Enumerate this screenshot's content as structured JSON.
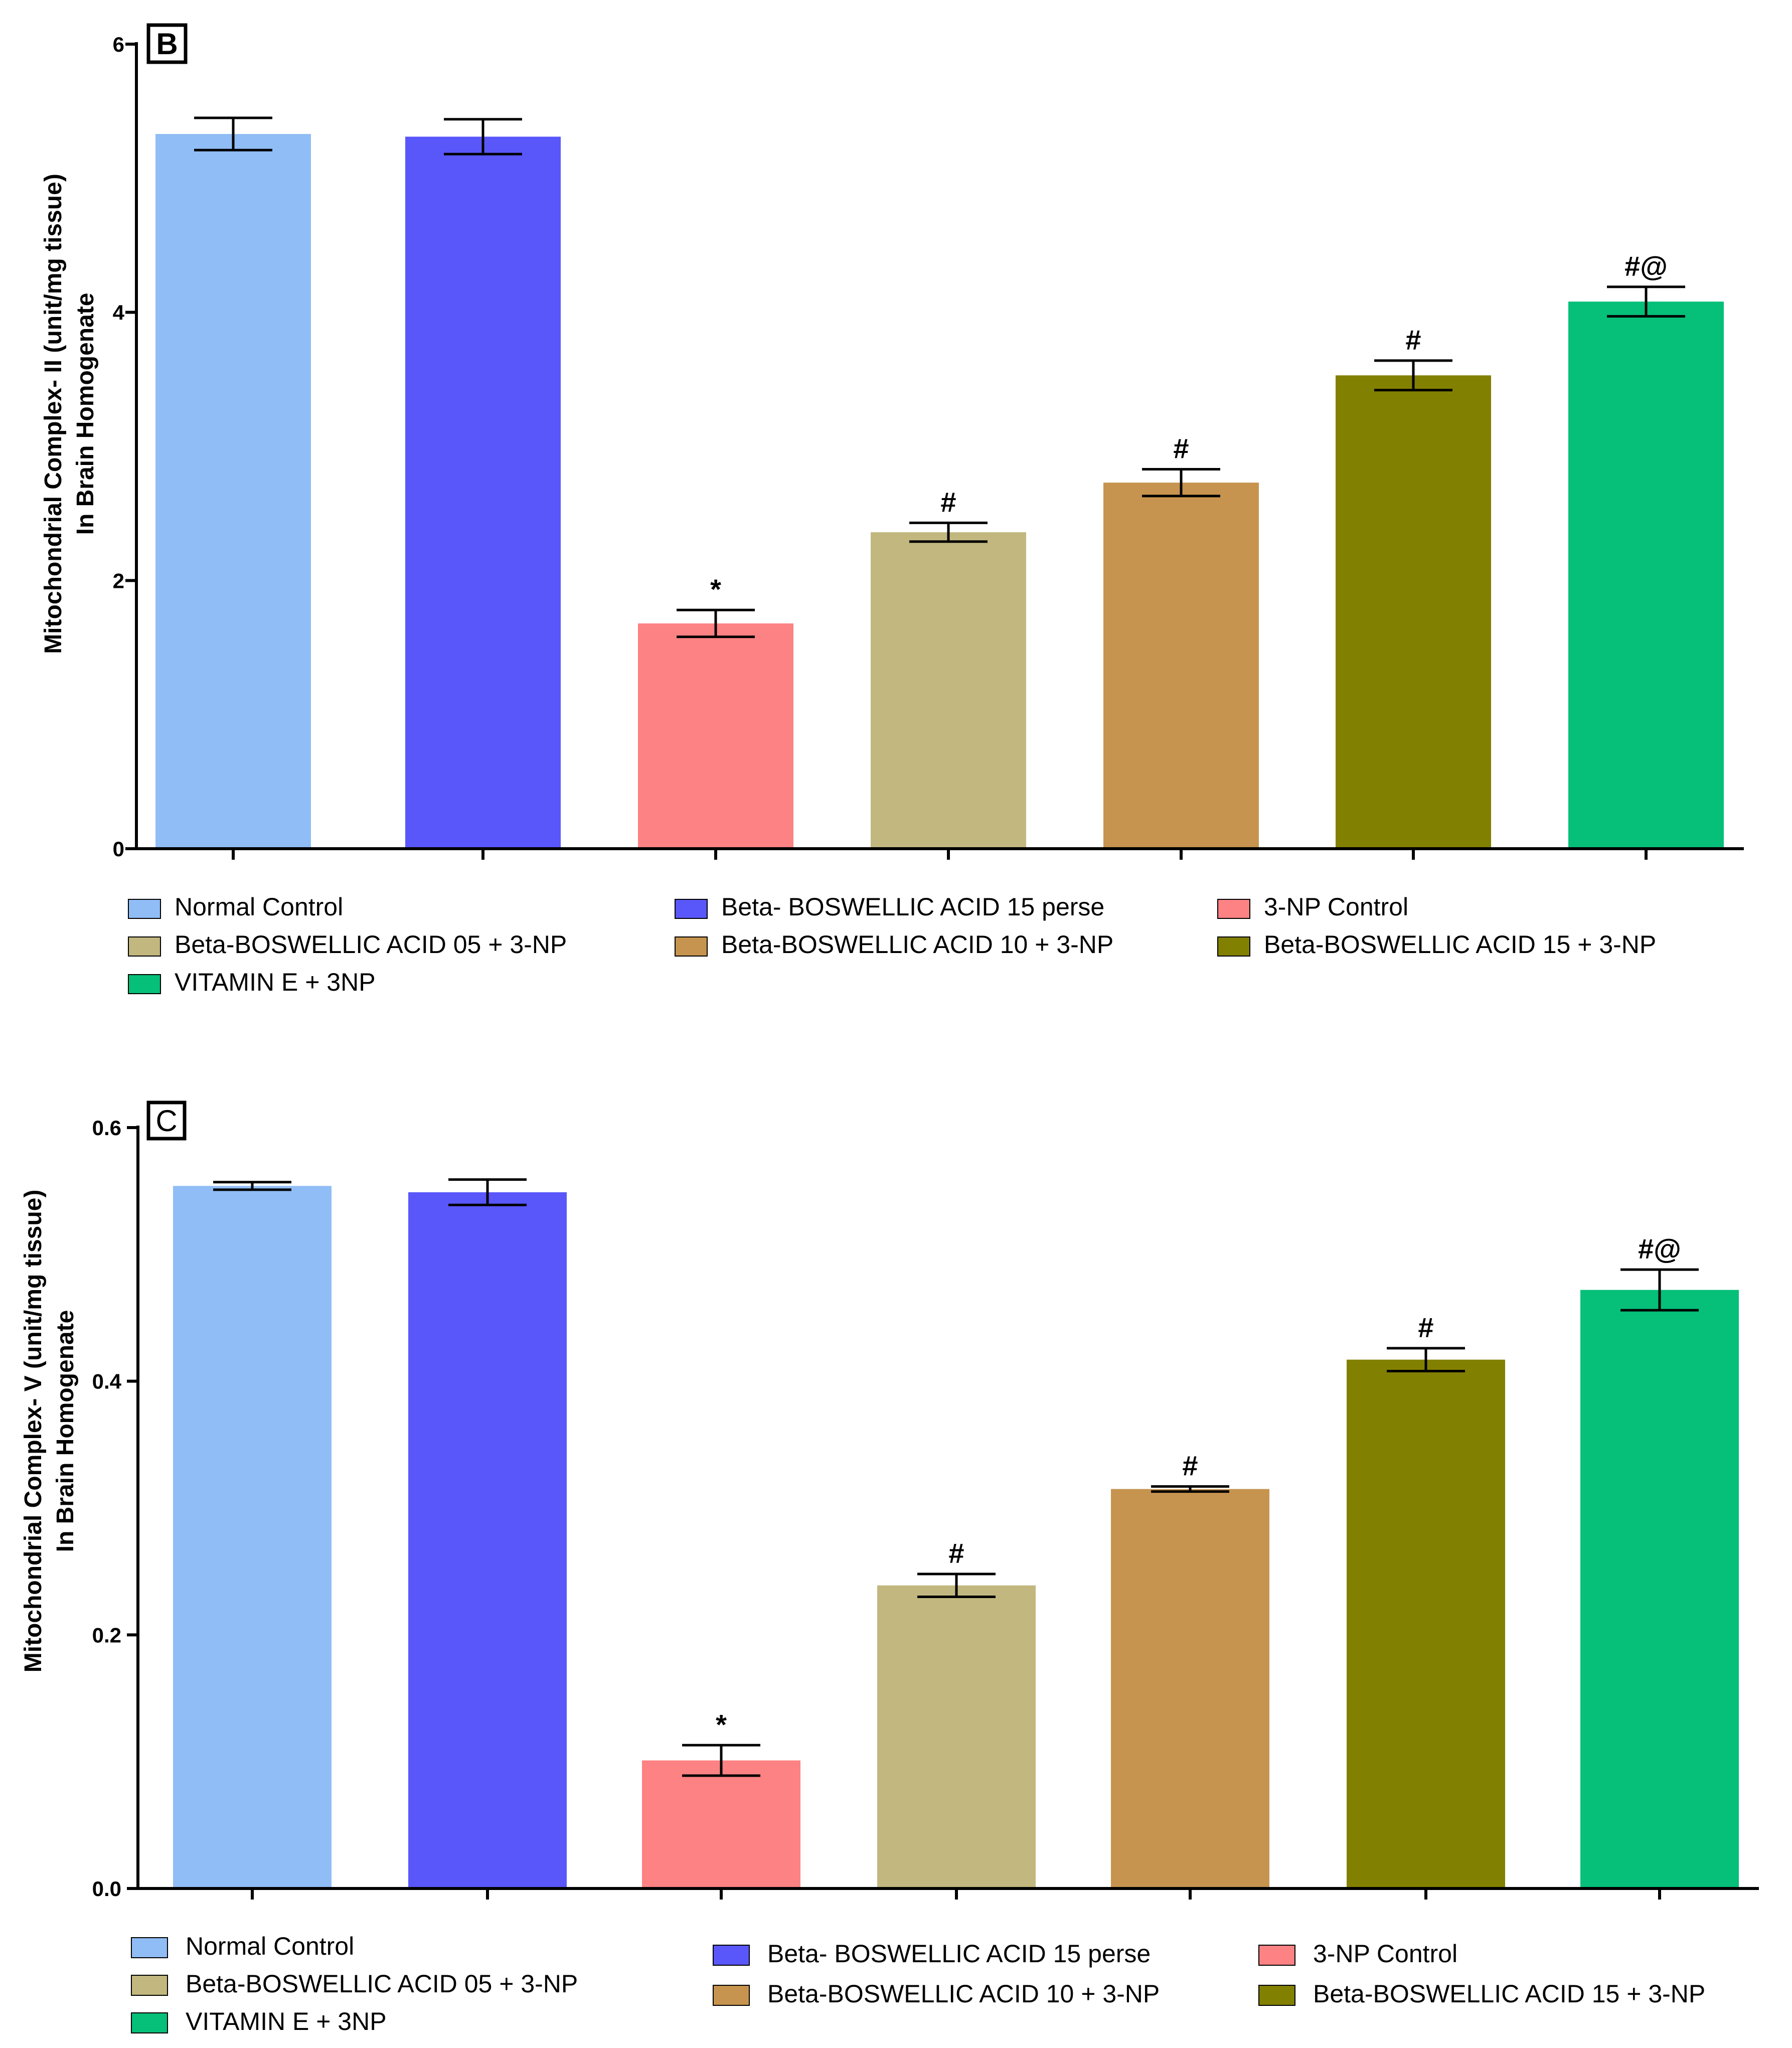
{
  "chart_data": [
    {
      "type": "bar",
      "panel_label": "B",
      "ylabel_line1": "Mitochondrial Complex- II (unit/mg tissue)",
      "ylabel_line2": "In Brain Homogenate",
      "ylim": [
        0,
        6
      ],
      "yticks": [
        "0",
        "2",
        "4",
        "6"
      ],
      "ytick_values": [
        0,
        2,
        4,
        6
      ],
      "categories": [
        "Normal Control",
        "Beta- BOSWELLIC ACID 15 perse",
        "3-NP Control",
        "Beta-BOSWELLIC ACID 05 + 3-NP",
        "Beta-BOSWELLIC ACID 10 + 3-NP",
        "Beta-BOSWELLIC ACID 15 + 3-NP",
        "VITAMIN E + 3NP"
      ],
      "values": [
        5.33,
        5.31,
        1.68,
        2.36,
        2.73,
        3.53,
        4.08
      ],
      "errors": [
        0.12,
        0.13,
        0.1,
        0.07,
        0.1,
        0.11,
        0.11
      ],
      "significance": [
        "",
        "",
        "*",
        "#",
        "#",
        "#",
        "#@"
      ],
      "legend_placement": "bottom"
    },
    {
      "type": "bar",
      "panel_label": "C",
      "ylabel_line1": "Mitochondrial Complex- V (unit/mg tissue)",
      "ylabel_line2": "In Brain Homogenate",
      "ylim": [
        0,
        0.6
      ],
      "yticks": [
        "0.0",
        "0.2",
        "0.4",
        "0.6"
      ],
      "ytick_values": [
        0,
        0.2,
        0.4,
        0.6
      ],
      "categories": [
        "Normal Control",
        "Beta- BOSWELLIC ACID 15 perse",
        "3-NP Control",
        "Beta-BOSWELLIC ACID 05 + 3-NP",
        "Beta-BOSWELLIC ACID 10 + 3-NP",
        "Beta-BOSWELLIC ACID 15 + 3-NP",
        "VITAMIN E + 3NP"
      ],
      "values": [
        0.554,
        0.549,
        0.101,
        0.239,
        0.315,
        0.417,
        0.472
      ],
      "errors": [
        0.003,
        0.01,
        0.012,
        0.009,
        0.002,
        0.009,
        0.016
      ],
      "significance": [
        "",
        "",
        "*",
        "#",
        "#",
        "#",
        "#@"
      ],
      "legend_placement": "bottom"
    }
  ],
  "colors": {
    "normal_control": "#90bdf5",
    "bba_15_perse": "#5957fa",
    "np_control": "#fd8283",
    "bba_05": "#c2b77f",
    "bba_10": "#c6944e",
    "bba_15": "#828000",
    "vitamin_e": "#06bf79",
    "axis": "#000000"
  }
}
